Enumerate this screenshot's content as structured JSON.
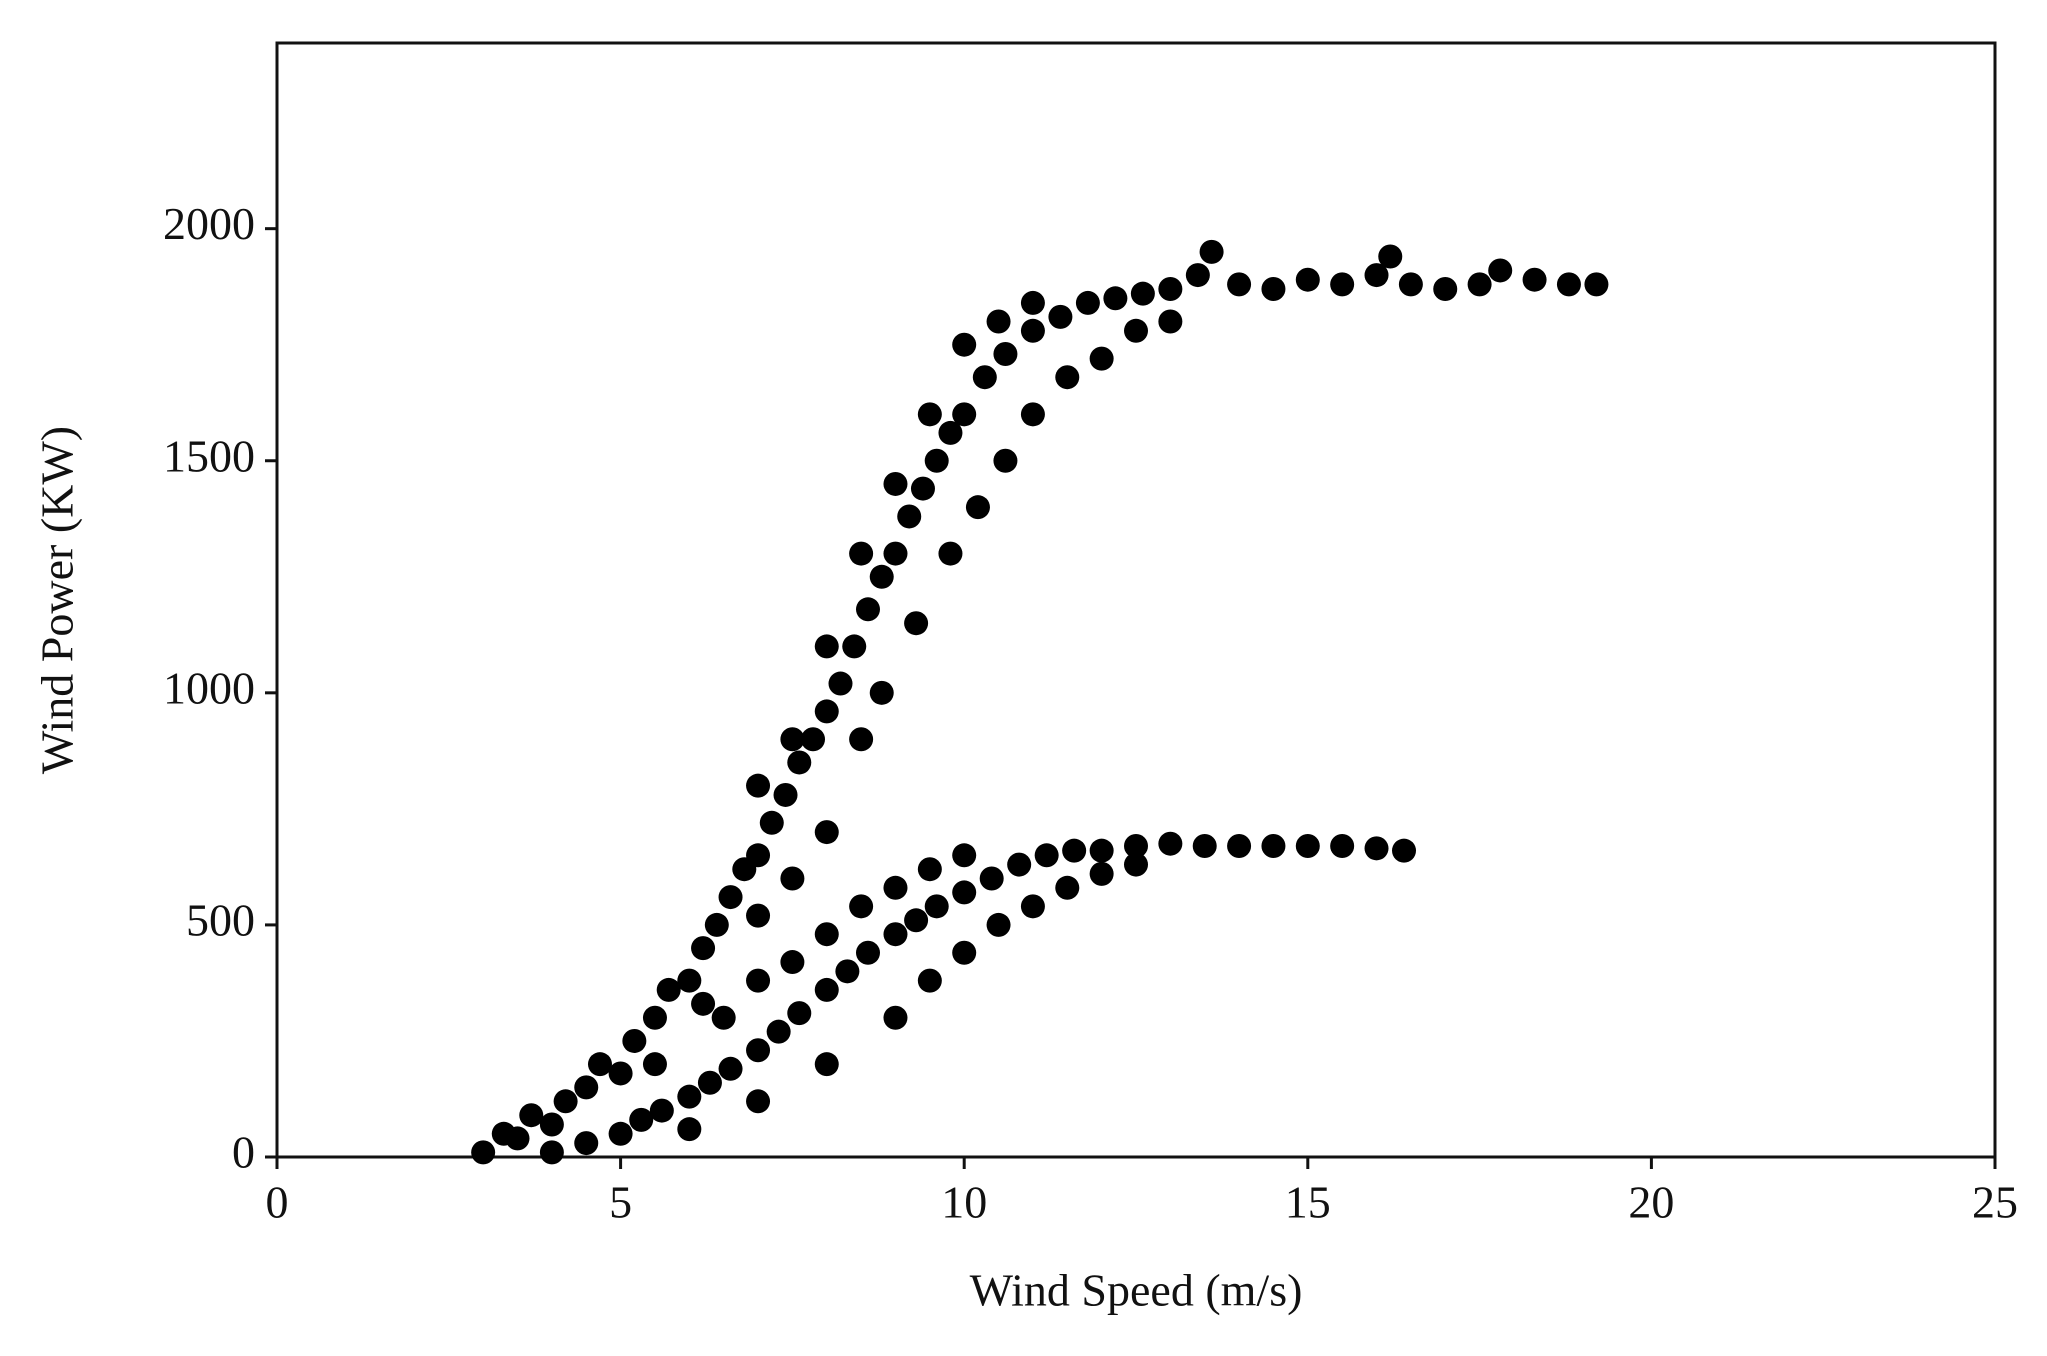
{
  "chart_data": {
    "type": "scatter",
    "xlabel": "Wind Speed (m/s)",
    "ylabel": "Wind Power (KW)",
    "color": "#000000",
    "xlim": [
      0,
      25
    ],
    "xticks": [
      0,
      5,
      10,
      15,
      20,
      25
    ],
    "ylim": [
      0,
      2400
    ],
    "yticks": [
      0,
      500,
      1000,
      1500,
      2000
    ],
    "grid": false,
    "x": [
      3.0,
      3.3,
      3.5,
      3.7,
      4.0,
      4.2,
      4.5,
      4.7,
      5.0,
      5.2,
      5.5,
      5.7,
      6.0,
      6.2,
      6.4,
      6.6,
      6.8,
      7.0,
      7.2,
      7.4,
      7.6,
      7.8,
      8.0,
      8.2,
      8.4,
      8.6,
      8.8,
      9.0,
      9.2,
      9.4,
      9.6,
      9.8,
      10.0,
      10.3,
      10.6,
      11.0,
      11.4,
      11.8,
      12.2,
      12.6,
      13.0,
      13.6,
      13.4,
      14.0,
      14.5,
      15.0,
      15.5,
      16.0,
      16.2,
      16.5,
      17.0,
      17.5,
      17.8,
      18.3,
      18.8,
      19.2,
      5.5,
      6.2,
      7.0,
      7.5,
      8.0,
      8.5,
      8.8,
      9.3,
      9.8,
      10.2,
      10.6,
      11.0,
      11.5,
      12.0,
      12.5,
      13.0,
      7.0,
      7.5,
      8.0,
      8.5,
      9.0,
      9.5,
      10.0,
      10.5,
      11.0,
      4.0,
      4.5,
      5.0,
      5.3,
      5.6,
      6.0,
      6.3,
      6.6,
      7.0,
      7.3,
      7.6,
      8.0,
      8.3,
      8.6,
      9.0,
      9.3,
      9.6,
      10.0,
      10.4,
      10.8,
      11.2,
      11.6,
      12.0,
      12.5,
      13.0,
      13.5,
      14.0,
      14.5,
      15.0,
      15.5,
      16.0,
      16.4,
      6.0,
      7.0,
      8.0,
      9.0,
      9.5,
      10.0,
      10.5,
      11.0,
      11.5,
      12.0,
      12.5,
      6.5,
      7.0,
      7.5,
      8.0,
      8.5,
      9.0,
      9.5,
      10.0
    ],
    "values": [
      10,
      50,
      40,
      90,
      70,
      120,
      150,
      200,
      180,
      250,
      300,
      360,
      380,
      450,
      500,
      560,
      620,
      650,
      720,
      780,
      850,
      900,
      960,
      1020,
      1100,
      1180,
      1250,
      1300,
      1380,
      1440,
      1500,
      1560,
      1600,
      1680,
      1730,
      1780,
      1810,
      1840,
      1850,
      1860,
      1870,
      1950,
      1900,
      1880,
      1870,
      1890,
      1880,
      1900,
      1940,
      1880,
      1870,
      1880,
      1910,
      1890,
      1880,
      1880,
      200,
      330,
      520,
      600,
      700,
      900,
      1000,
      1150,
      1300,
      1400,
      1500,
      1600,
      1680,
      1720,
      1780,
      1800,
      800,
      900,
      1100,
      1300,
      1450,
      1600,
      1750,
      1800,
      1840,
      10,
      30,
      50,
      80,
      100,
      130,
      160,
      190,
      230,
      270,
      310,
      360,
      400,
      440,
      480,
      510,
      540,
      570,
      600,
      630,
      650,
      660,
      660,
      670,
      675,
      670,
      670,
      670,
      670,
      670,
      665,
      660,
      60,
      120,
      200,
      300,
      380,
      440,
      500,
      540,
      580,
      610,
      630,
      300,
      380,
      420,
      480,
      540,
      580,
      620,
      650
    ]
  }
}
